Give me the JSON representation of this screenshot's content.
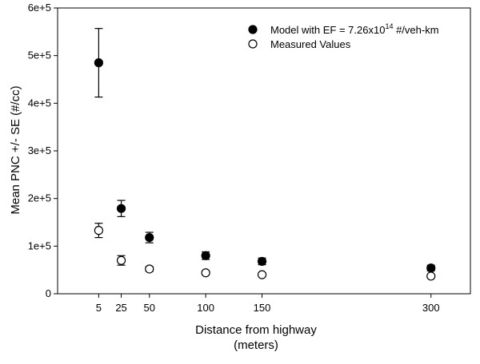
{
  "chart_data": {
    "type": "scatter",
    "title": "",
    "xlabel": "Distance from highway",
    "xlabel_unit": "(meters)",
    "ylabel": "Mean PNC +/- SE (#/cc)",
    "x_ticks": [
      5,
      25,
      50,
      100,
      150,
      300
    ],
    "y_ticks": [
      "0",
      "1e+5",
      "2e+5",
      "3e+5",
      "4e+5",
      "5e+5",
      "6e+5"
    ],
    "ylim": [
      0,
      600000
    ],
    "error_bars": true,
    "legend_position": "top-right",
    "series": [
      {
        "name": "Model with EF = 7.26x10^14 #/veh-km",
        "marker": "filled-circle",
        "color": "#000000",
        "points": [
          {
            "x": 5,
            "y": 485000,
            "err": 72000
          },
          {
            "x": 25,
            "y": 179000,
            "err": 17000
          },
          {
            "x": 50,
            "y": 118000,
            "err": 11000
          },
          {
            "x": 100,
            "y": 80000,
            "err": 8000
          },
          {
            "x": 150,
            "y": 68000,
            "err": 7000
          },
          {
            "x": 300,
            "y": 54000,
            "err": 6000
          }
        ]
      },
      {
        "name": "Measured Values",
        "marker": "open-circle",
        "color": "#000000",
        "points": [
          {
            "x": 5,
            "y": 133000,
            "err": 15000
          },
          {
            "x": 25,
            "y": 70000,
            "err": 10000
          },
          {
            "x": 50,
            "y": 52000,
            "err": 5000
          },
          {
            "x": 100,
            "y": 44000,
            "err": 4000
          },
          {
            "x": 150,
            "y": 40000,
            "err": 3000
          },
          {
            "x": 300,
            "y": 37000,
            "err": 3000
          }
        ]
      }
    ]
  },
  "legend": {
    "model_label_prefix": "Model with EF = 7.26x10",
    "model_label_exponent": "14",
    "model_label_suffix": " #/veh-km",
    "measured_label": "Measured Values"
  }
}
